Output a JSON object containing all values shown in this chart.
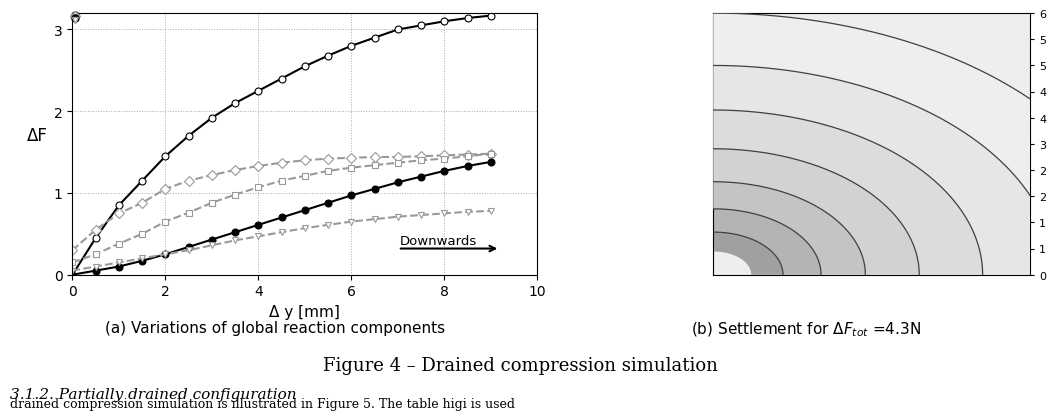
{
  "title": "Figure 4 – Drained compression simulation",
  "subtitle": "3.1.2. Partially drained configuration",
  "caption_a": "(a) Variations of global reaction components",
  "caption_b": "(b) Settlement for $\\Delta F_{tot}$ =4.3N",
  "xlabel": "Δ y [mm]",
  "ylabel": "ΔF",
  "xlim": [
    0,
    10
  ],
  "ylim": [
    0,
    3.2
  ],
  "yticks": [
    0,
    1,
    2,
    3
  ],
  "xticks": [
    0,
    2,
    4,
    6,
    8,
    10
  ],
  "annotation_text": "Downwards",
  "background_color": "#ffffff",
  "grid_color": "#aaaaaa",
  "series_order": [
    "circle_solid",
    "diamond_gray",
    "square_gray",
    "filled_circle_solid",
    "triangle_gray"
  ],
  "series": {
    "circle_solid": {
      "x": [
        0,
        0.5,
        1.0,
        1.5,
        2.0,
        2.5,
        3.0,
        3.5,
        4.0,
        4.5,
        5.0,
        5.5,
        6.0,
        6.5,
        7.0,
        7.5,
        8.0,
        8.5,
        9.0
      ],
      "y": [
        0.0,
        0.45,
        0.85,
        1.15,
        1.45,
        1.7,
        1.92,
        2.1,
        2.25,
        2.4,
        2.55,
        2.68,
        2.8,
        2.9,
        3.0,
        3.05,
        3.1,
        3.14,
        3.17
      ],
      "color": "#000000",
      "linestyle": "-",
      "marker": "o",
      "markerfacecolor": "white",
      "linewidth": 1.5
    },
    "diamond_gray": {
      "x": [
        0,
        0.5,
        1.0,
        1.5,
        2.0,
        2.5,
        3.0,
        3.5,
        4.0,
        4.5,
        5.0,
        5.5,
        6.0,
        6.5,
        7.0,
        7.5,
        8.0,
        8.5,
        9.0
      ],
      "y": [
        0.3,
        0.55,
        0.75,
        0.88,
        1.05,
        1.15,
        1.22,
        1.28,
        1.33,
        1.37,
        1.4,
        1.42,
        1.43,
        1.44,
        1.44,
        1.45,
        1.46,
        1.47,
        1.48
      ],
      "color": "#999999",
      "linestyle": "--",
      "marker": "D",
      "markerfacecolor": "white",
      "linewidth": 1.5
    },
    "square_gray": {
      "x": [
        0,
        0.5,
        1.0,
        1.5,
        2.0,
        2.5,
        3.0,
        3.5,
        4.0,
        4.5,
        5.0,
        5.5,
        6.0,
        6.5,
        7.0,
        7.5,
        8.0,
        8.5,
        9.0
      ],
      "y": [
        0.15,
        0.25,
        0.38,
        0.5,
        0.65,
        0.76,
        0.88,
        0.98,
        1.07,
        1.15,
        1.21,
        1.27,
        1.31,
        1.34,
        1.37,
        1.4,
        1.42,
        1.45,
        1.48
      ],
      "color": "#999999",
      "linestyle": "--",
      "marker": "s",
      "markerfacecolor": "white",
      "linewidth": 1.5
    },
    "filled_circle_solid": {
      "x": [
        0,
        0.5,
        1.0,
        1.5,
        2.0,
        2.5,
        3.0,
        3.5,
        4.0,
        4.5,
        5.0,
        5.5,
        6.0,
        6.5,
        7.0,
        7.5,
        8.0,
        8.5,
        9.0
      ],
      "y": [
        0.0,
        0.05,
        0.1,
        0.17,
        0.25,
        0.34,
        0.43,
        0.52,
        0.61,
        0.7,
        0.79,
        0.88,
        0.97,
        1.05,
        1.13,
        1.2,
        1.27,
        1.33,
        1.38
      ],
      "color": "#000000",
      "linestyle": "-",
      "marker": "o",
      "markerfacecolor": "#000000",
      "linewidth": 1.5
    },
    "triangle_gray": {
      "x": [
        0,
        0.5,
        1.0,
        1.5,
        2.0,
        2.5,
        3.0,
        3.5,
        4.0,
        4.5,
        5.0,
        5.5,
        6.0,
        6.5,
        7.0,
        7.5,
        8.0,
        8.5,
        9.0
      ],
      "y": [
        0.05,
        0.1,
        0.15,
        0.2,
        0.25,
        0.3,
        0.36,
        0.42,
        0.47,
        0.52,
        0.57,
        0.61,
        0.65,
        0.68,
        0.71,
        0.73,
        0.75,
        0.77,
        0.78
      ],
      "color": "#999999",
      "linestyle": "--",
      "marker": "v",
      "markerfacecolor": "white",
      "linewidth": 1.5
    }
  },
  "contour_radii": [
    0.12,
    0.22,
    0.34,
    0.48,
    0.65,
    0.85,
    1.08,
    1.35
  ],
  "contour_fill_colors": [
    "#a0a0a0",
    "#b4b4b4",
    "#c4c4c4",
    "#d2d2d2",
    "#dcdcdc",
    "#e6e6e6",
    "#eeeeee"
  ],
  "contour_bg": "#eeeeee",
  "contour_line_color": "#404040",
  "ytick_labels_right": [
    "0",
    "1",
    "1",
    "2",
    "2",
    "3",
    "4",
    "4",
    "5",
    "5",
    "6"
  ]
}
